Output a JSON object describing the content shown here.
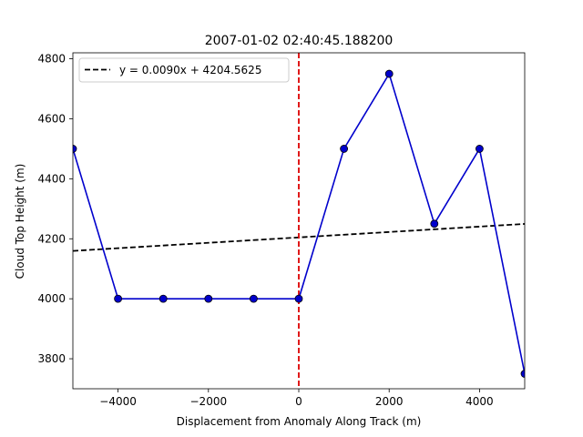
{
  "chart_data": {
    "type": "line",
    "title": "2007-01-02 02:40:45.188200",
    "xlabel": "Displacement from Anomaly Along Track (m)",
    "ylabel": "Cloud Top Height (m)",
    "xlim": [
      -5000,
      5000
    ],
    "ylim": [
      3700,
      4820
    ],
    "x_ticks": [
      -4000,
      -2000,
      0,
      2000,
      4000
    ],
    "x_tick_labels": [
      "−4000",
      "−2000",
      "0",
      "2000",
      "4000"
    ],
    "y_ticks": [
      3800,
      4000,
      4200,
      4400,
      4600,
      4800
    ],
    "y_tick_labels": [
      "3800",
      "4000",
      "4200",
      "4400",
      "4600",
      "4800"
    ],
    "grid": false,
    "legend_position": "top-left",
    "series": [
      {
        "style": "line-with-circle-markers",
        "color": "#0000cc",
        "x": [
          -5000,
          -4000,
          -3000,
          -2000,
          -1000,
          0,
          1000,
          2000,
          3000,
          4000,
          5000
        ],
        "y": [
          4500,
          4000,
          4000,
          4000,
          4000,
          4000,
          4500,
          4750,
          4250,
          4500,
          3750
        ]
      },
      {
        "name": "y = 0.0090x + 4204.5625",
        "style": "dashed-fit-line",
        "color": "#000000",
        "slope": 0.009,
        "intercept": 4204.5625
      }
    ],
    "annotations": [
      {
        "type": "vertical-line",
        "x": 0,
        "style": "dashed",
        "color": "#dd0000"
      }
    ]
  }
}
